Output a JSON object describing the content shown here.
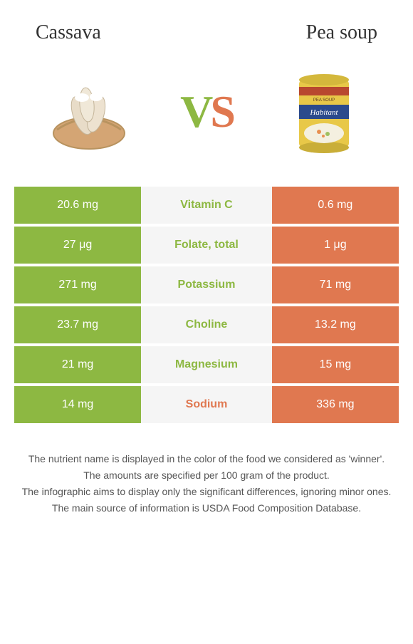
{
  "header": {
    "left_title": "Cassava",
    "right_title": "Pea soup",
    "vs_v": "V",
    "vs_s": "S"
  },
  "colors": {
    "green": "#8db842",
    "orange": "#e07850",
    "mid_bg": "#f5f5f5",
    "text": "#333333",
    "footnote": "#555555"
  },
  "nutrients": [
    {
      "left": "20.6 mg",
      "name": "Vitamin C",
      "right": "0.6 mg",
      "winner": "green"
    },
    {
      "left": "27 μg",
      "name": "Folate, total",
      "right": "1 μg",
      "winner": "green"
    },
    {
      "left": "271 mg",
      "name": "Potassium",
      "right": "71 mg",
      "winner": "green"
    },
    {
      "left": "23.7 mg",
      "name": "Choline",
      "right": "13.2 mg",
      "winner": "green"
    },
    {
      "left": "21 mg",
      "name": "Magnesium",
      "right": "15 mg",
      "winner": "green"
    },
    {
      "left": "14 mg",
      "name": "Sodium",
      "right": "336 mg",
      "winner": "orange"
    }
  ],
  "footnotes": [
    "The nutrient name is displayed in the color of the food we considered as 'winner'.",
    "The amounts are specified per 100 gram of the product.",
    "The infographic aims to display only the significant differences, ignoring minor ones.",
    "The main source of information is USDA Food Composition Database."
  ]
}
